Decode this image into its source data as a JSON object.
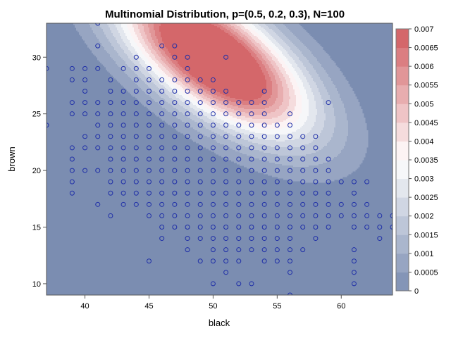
{
  "chart_data": {
    "type": "contour",
    "title": "Multinomial Distribution, p=(0.5, 0.2, 0.3), N=100",
    "xlabel": "black",
    "ylabel": "brown",
    "xlim": [
      37,
      64
    ],
    "ylim": [
      9,
      33
    ],
    "x_ticks": [
      "40",
      "45",
      "50",
      "55",
      "60"
    ],
    "y_ticks": [
      "10",
      "15",
      "20",
      "25",
      "30"
    ],
    "x_tick_values": [
      40,
      45,
      50,
      55,
      60
    ],
    "y_tick_values": [
      10,
      15,
      20,
      25,
      30
    ],
    "distribution": {
      "N": 100,
      "p": [
        0.5,
        0.2,
        0.3
      ]
    },
    "legend": {
      "position": "right",
      "labels": [
        "0.007",
        "0.0065",
        "0.006",
        "0.0055",
        "0.005",
        "0.0045",
        "0.004",
        "0.0035",
        "0.003",
        "0.0025",
        "0.002",
        "0.0015",
        "0.001",
        "0.0005",
        "0"
      ],
      "values": [
        0.007,
        0.0065,
        0.006,
        0.0055,
        0.005,
        0.0045,
        0.004,
        0.0035,
        0.003,
        0.0025,
        0.002,
        0.0015,
        0.001,
        0.0005,
        0
      ]
    },
    "colors": {
      "low": "#7b8db1",
      "mid": "#ffffff",
      "high": "#d15b5e",
      "marker": "#1f2fa8"
    },
    "scatter_points": [
      [
        37,
        24
      ],
      [
        37,
        29
      ],
      [
        39,
        18
      ],
      [
        39,
        19
      ],
      [
        39,
        20
      ],
      [
        39,
        21
      ],
      [
        39,
        22
      ],
      [
        39,
        25
      ],
      [
        39,
        26
      ],
      [
        39,
        28
      ],
      [
        39,
        29
      ],
      [
        40,
        20
      ],
      [
        40,
        22
      ],
      [
        40,
        23
      ],
      [
        40,
        25
      ],
      [
        40,
        26
      ],
      [
        40,
        27
      ],
      [
        40,
        28
      ],
      [
        40,
        29
      ],
      [
        41,
        17
      ],
      [
        41,
        20
      ],
      [
        41,
        22
      ],
      [
        41,
        23
      ],
      [
        41,
        24
      ],
      [
        41,
        25
      ],
      [
        41,
        26
      ],
      [
        41,
        29
      ],
      [
        41,
        31
      ],
      [
        41,
        33
      ],
      [
        42,
        16
      ],
      [
        42,
        18
      ],
      [
        42,
        19
      ],
      [
        42,
        20
      ],
      [
        42,
        21
      ],
      [
        42,
        22
      ],
      [
        42,
        23
      ],
      [
        42,
        24
      ],
      [
        42,
        25
      ],
      [
        42,
        26
      ],
      [
        42,
        27
      ],
      [
        42,
        28
      ],
      [
        43,
        17
      ],
      [
        43,
        18
      ],
      [
        43,
        19
      ],
      [
        43,
        20
      ],
      [
        43,
        21
      ],
      [
        43,
        22
      ],
      [
        43,
        23
      ],
      [
        43,
        24
      ],
      [
        43,
        25
      ],
      [
        43,
        26
      ],
      [
        43,
        27
      ],
      [
        43,
        29
      ],
      [
        44,
        17
      ],
      [
        44,
        18
      ],
      [
        44,
        19
      ],
      [
        44,
        20
      ],
      [
        44,
        21
      ],
      [
        44,
        22
      ],
      [
        44,
        23
      ],
      [
        44,
        24
      ],
      [
        44,
        25
      ],
      [
        44,
        26
      ],
      [
        44,
        27
      ],
      [
        44,
        28
      ],
      [
        44,
        29
      ],
      [
        44,
        30
      ],
      [
        45,
        12
      ],
      [
        45,
        16
      ],
      [
        45,
        17
      ],
      [
        45,
        18
      ],
      [
        45,
        19
      ],
      [
        45,
        20
      ],
      [
        45,
        21
      ],
      [
        45,
        22
      ],
      [
        45,
        23
      ],
      [
        45,
        24
      ],
      [
        45,
        25
      ],
      [
        45,
        26
      ],
      [
        45,
        27
      ],
      [
        45,
        28
      ],
      [
        45,
        29
      ],
      [
        46,
        14
      ],
      [
        46,
        15
      ],
      [
        46,
        16
      ],
      [
        46,
        17
      ],
      [
        46,
        18
      ],
      [
        46,
        19
      ],
      [
        46,
        20
      ],
      [
        46,
        21
      ],
      [
        46,
        22
      ],
      [
        46,
        23
      ],
      [
        46,
        24
      ],
      [
        46,
        25
      ],
      [
        46,
        26
      ],
      [
        46,
        27
      ],
      [
        46,
        28
      ],
      [
        46,
        31
      ],
      [
        47,
        15
      ],
      [
        47,
        16
      ],
      [
        47,
        17
      ],
      [
        47,
        18
      ],
      [
        47,
        19
      ],
      [
        47,
        20
      ],
      [
        47,
        21
      ],
      [
        47,
        22
      ],
      [
        47,
        23
      ],
      [
        47,
        24
      ],
      [
        47,
        25
      ],
      [
        47,
        26
      ],
      [
        47,
        27
      ],
      [
        47,
        28
      ],
      [
        47,
        30
      ],
      [
        47,
        31
      ],
      [
        48,
        13
      ],
      [
        48,
        14
      ],
      [
        48,
        15
      ],
      [
        48,
        16
      ],
      [
        48,
        17
      ],
      [
        48,
        18
      ],
      [
        48,
        19
      ],
      [
        48,
        20
      ],
      [
        48,
        21
      ],
      [
        48,
        22
      ],
      [
        48,
        23
      ],
      [
        48,
        24
      ],
      [
        48,
        25
      ],
      [
        48,
        26
      ],
      [
        48,
        27
      ],
      [
        48,
        28
      ],
      [
        48,
        29
      ],
      [
        48,
        30
      ],
      [
        49,
        12
      ],
      [
        49,
        14
      ],
      [
        49,
        15
      ],
      [
        49,
        16
      ],
      [
        49,
        17
      ],
      [
        49,
        18
      ],
      [
        49,
        19
      ],
      [
        49,
        20
      ],
      [
        49,
        21
      ],
      [
        49,
        22
      ],
      [
        49,
        23
      ],
      [
        49,
        24
      ],
      [
        49,
        25
      ],
      [
        49,
        26
      ],
      [
        49,
        27
      ],
      [
        49,
        28
      ],
      [
        50,
        10
      ],
      [
        50,
        12
      ],
      [
        50,
        13
      ],
      [
        50,
        14
      ],
      [
        50,
        15
      ],
      [
        50,
        16
      ],
      [
        50,
        17
      ],
      [
        50,
        18
      ],
      [
        50,
        19
      ],
      [
        50,
        20
      ],
      [
        50,
        21
      ],
      [
        50,
        22
      ],
      [
        50,
        23
      ],
      [
        50,
        24
      ],
      [
        50,
        25
      ],
      [
        50,
        26
      ],
      [
        50,
        27
      ],
      [
        50,
        28
      ],
      [
        51,
        11
      ],
      [
        51,
        12
      ],
      [
        51,
        13
      ],
      [
        51,
        14
      ],
      [
        51,
        15
      ],
      [
        51,
        16
      ],
      [
        51,
        17
      ],
      [
        51,
        18
      ],
      [
        51,
        19
      ],
      [
        51,
        20
      ],
      [
        51,
        21
      ],
      [
        51,
        22
      ],
      [
        51,
        23
      ],
      [
        51,
        24
      ],
      [
        51,
        25
      ],
      [
        51,
        26
      ],
      [
        51,
        27
      ],
      [
        51,
        30
      ],
      [
        52,
        10
      ],
      [
        52,
        12
      ],
      [
        52,
        13
      ],
      [
        52,
        14
      ],
      [
        52,
        15
      ],
      [
        52,
        16
      ],
      [
        52,
        17
      ],
      [
        52,
        18
      ],
      [
        52,
        19
      ],
      [
        52,
        20
      ],
      [
        52,
        21
      ],
      [
        52,
        22
      ],
      [
        52,
        23
      ],
      [
        52,
        24
      ],
      [
        52,
        25
      ],
      [
        52,
        26
      ],
      [
        53,
        10
      ],
      [
        53,
        13
      ],
      [
        53,
        14
      ],
      [
        53,
        15
      ],
      [
        53,
        16
      ],
      [
        53,
        17
      ],
      [
        53,
        18
      ],
      [
        53,
        19
      ],
      [
        53,
        20
      ],
      [
        53,
        21
      ],
      [
        53,
        22
      ],
      [
        53,
        23
      ],
      [
        53,
        24
      ],
      [
        53,
        25
      ],
      [
        53,
        26
      ],
      [
        54,
        12
      ],
      [
        54,
        13
      ],
      [
        54,
        14
      ],
      [
        54,
        15
      ],
      [
        54,
        16
      ],
      [
        54,
        17
      ],
      [
        54,
        18
      ],
      [
        54,
        19
      ],
      [
        54,
        20
      ],
      [
        54,
        21
      ],
      [
        54,
        22
      ],
      [
        54,
        23
      ],
      [
        54,
        24
      ],
      [
        54,
        25
      ],
      [
        54,
        26
      ],
      [
        54,
        27
      ],
      [
        55,
        12
      ],
      [
        55,
        13
      ],
      [
        55,
        14
      ],
      [
        55,
        15
      ],
      [
        55,
        16
      ],
      [
        55,
        17
      ],
      [
        55,
        18
      ],
      [
        55,
        19
      ],
      [
        55,
        20
      ],
      [
        55,
        21
      ],
      [
        55,
        22
      ],
      [
        55,
        23
      ],
      [
        55,
        24
      ],
      [
        56,
        9
      ],
      [
        56,
        11
      ],
      [
        56,
        12
      ],
      [
        56,
        13
      ],
      [
        56,
        14
      ],
      [
        56,
        15
      ],
      [
        56,
        16
      ],
      [
        56,
        17
      ],
      [
        56,
        18
      ],
      [
        56,
        19
      ],
      [
        56,
        20
      ],
      [
        56,
        21
      ],
      [
        56,
        22
      ],
      [
        56,
        23
      ],
      [
        56,
        24
      ],
      [
        56,
        25
      ],
      [
        57,
        13
      ],
      [
        57,
        15
      ],
      [
        57,
        16
      ],
      [
        57,
        17
      ],
      [
        57,
        18
      ],
      [
        57,
        19
      ],
      [
        57,
        20
      ],
      [
        57,
        21
      ],
      [
        57,
        22
      ],
      [
        57,
        23
      ],
      [
        58,
        14
      ],
      [
        58,
        15
      ],
      [
        58,
        16
      ],
      [
        58,
        17
      ],
      [
        58,
        18
      ],
      [
        58,
        19
      ],
      [
        58,
        20
      ],
      [
        58,
        21
      ],
      [
        58,
        22
      ],
      [
        58,
        23
      ],
      [
        59,
        15
      ],
      [
        59,
        16
      ],
      [
        59,
        17
      ],
      [
        59,
        18
      ],
      [
        59,
        19
      ],
      [
        59,
        20
      ],
      [
        59,
        21
      ],
      [
        59,
        26
      ],
      [
        60,
        16
      ],
      [
        60,
        17
      ],
      [
        60,
        19
      ],
      [
        61,
        10
      ],
      [
        61,
        11
      ],
      [
        61,
        12
      ],
      [
        61,
        13
      ],
      [
        61,
        15
      ],
      [
        61,
        16
      ],
      [
        61,
        17
      ],
      [
        61,
        18
      ],
      [
        61,
        19
      ],
      [
        62,
        15
      ],
      [
        62,
        16
      ],
      [
        62,
        17
      ],
      [
        62,
        19
      ],
      [
        63,
        14
      ],
      [
        63,
        15
      ],
      [
        63,
        16
      ],
      [
        64,
        15
      ],
      [
        64,
        16
      ]
    ]
  }
}
